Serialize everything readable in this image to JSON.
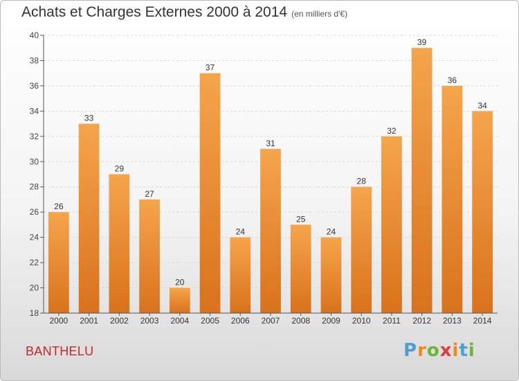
{
  "title": "Achats et Charges Externes 2000 à 2014",
  "subtitle": "(en milliers d'€)",
  "footer": {
    "place": "BANTHELU",
    "logo": "Proxiti"
  },
  "colors": {
    "bar_top": "#f5a54c",
    "bar_bottom": "#d9721c",
    "axis": "#555555",
    "grid": "#d7d7d7",
    "place": "#c8262c",
    "logo": [
      "#4aa0d5",
      "#f08a1d",
      "#6ab634",
      "#e23b3b",
      "#f08a1d",
      "#4aa0d5",
      "#6ab634"
    ]
  },
  "chart_data": {
    "type": "bar",
    "categories": [
      "2000",
      "2001",
      "2002",
      "2003",
      "2004",
      "2005",
      "2006",
      "2007",
      "2008",
      "2009",
      "2010",
      "2011",
      "2012",
      "2013",
      "2014"
    ],
    "values": [
      26,
      33,
      29,
      27,
      20,
      37,
      24,
      31,
      25,
      24,
      28,
      32,
      39,
      36,
      34
    ],
    "xlabel": "",
    "ylabel": "",
    "ylim": [
      18,
      40
    ],
    "yticks": [
      18,
      20,
      22,
      24,
      26,
      28,
      30,
      32,
      34,
      36,
      38,
      40
    ],
    "data_labels": true,
    "grid": true
  }
}
